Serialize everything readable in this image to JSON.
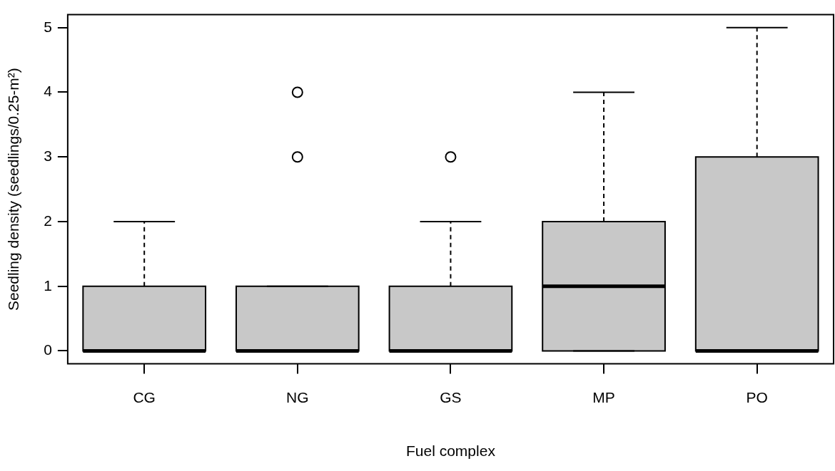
{
  "chart_data": {
    "type": "box",
    "xlabel": "Fuel complex",
    "ylabel": "Seedling density (seedlings/0.25-m²)",
    "categories": [
      "CG",
      "NG",
      "GS",
      "MP",
      "PO"
    ],
    "color": "#c8c8c8",
    "boxes": [
      {
        "low": 0,
        "q1": 0,
        "median": 0,
        "q3": 1,
        "high": 2
      },
      {
        "low": 0,
        "q1": 0,
        "median": 0,
        "q3": 1,
        "high": 1,
        "outliers": [
          3,
          4
        ]
      },
      {
        "low": 0,
        "q1": 0,
        "median": 0,
        "q3": 1,
        "high": 2,
        "outliers": [
          3
        ]
      },
      {
        "low": 0,
        "q1": 0,
        "median": 1,
        "q3": 2,
        "high": 4
      },
      {
        "low": 0,
        "q1": 0,
        "median": 0,
        "q3": 3,
        "high": 5
      }
    ],
    "ylim": [
      -0.2,
      5.2
    ],
    "yticks": [
      0,
      1,
      2,
      3,
      4,
      5
    ],
    "grid": false
  }
}
